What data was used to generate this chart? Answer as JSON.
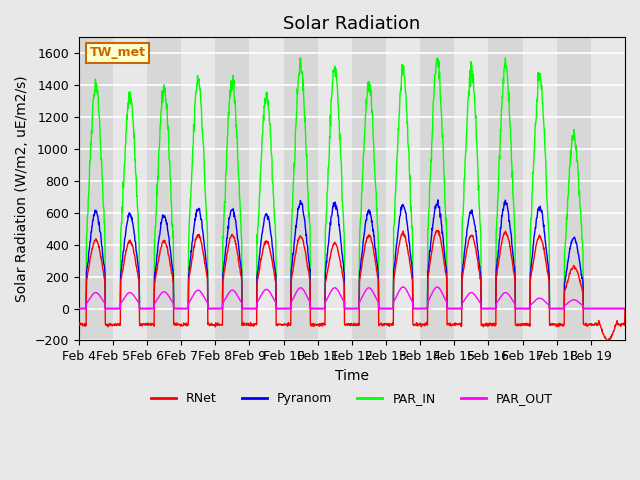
{
  "title": "Solar Radiation",
  "ylabel": "Solar Radiation (W/m2, uE/m2/s)",
  "xlabel": "Time",
  "ylim": [
    -200,
    1700
  ],
  "yticks": [
    -200,
    0,
    200,
    400,
    600,
    800,
    1000,
    1200,
    1400,
    1600
  ],
  "xtick_labels": [
    "Feb 4",
    "Feb 5",
    "Feb 6",
    "Feb 7",
    "Feb 8",
    "Feb 9",
    "Feb 10",
    "Feb 11",
    "Feb 12",
    "Feb 13",
    "Feb 14",
    "Feb 15",
    "Feb 16",
    "Feb 17",
    "Feb 18",
    "Feb 19"
  ],
  "legend_labels": [
    "RNet",
    "Pyranom",
    "PAR_IN",
    "PAR_OUT"
  ],
  "legend_colors": [
    "red",
    "blue",
    "lime",
    "magenta"
  ],
  "station_label": "TW_met",
  "background_color": "#e8e8e8",
  "title_fontsize": 13,
  "label_fontsize": 10,
  "tick_fontsize": 9,
  "n_days": 16,
  "peak_heights_par": [
    1410,
    1340,
    1380,
    1440,
    1430,
    1350,
    1520,
    1510,
    1400,
    1480,
    1540,
    1490,
    1530,
    1450,
    1080,
    0
  ],
  "peak_heights_pyr": [
    610,
    590,
    585,
    625,
    620,
    590,
    665,
    660,
    610,
    650,
    660,
    605,
    660,
    630,
    440,
    0
  ],
  "peak_heights_rnet": [
    430,
    420,
    420,
    460,
    460,
    420,
    450,
    410,
    460,
    470,
    490,
    460,
    480,
    450,
    260,
    -200
  ],
  "peak_heights_out": [
    100,
    100,
    105,
    115,
    115,
    120,
    130,
    130,
    130,
    135,
    135,
    100,
    100,
    65,
    55,
    0
  ]
}
